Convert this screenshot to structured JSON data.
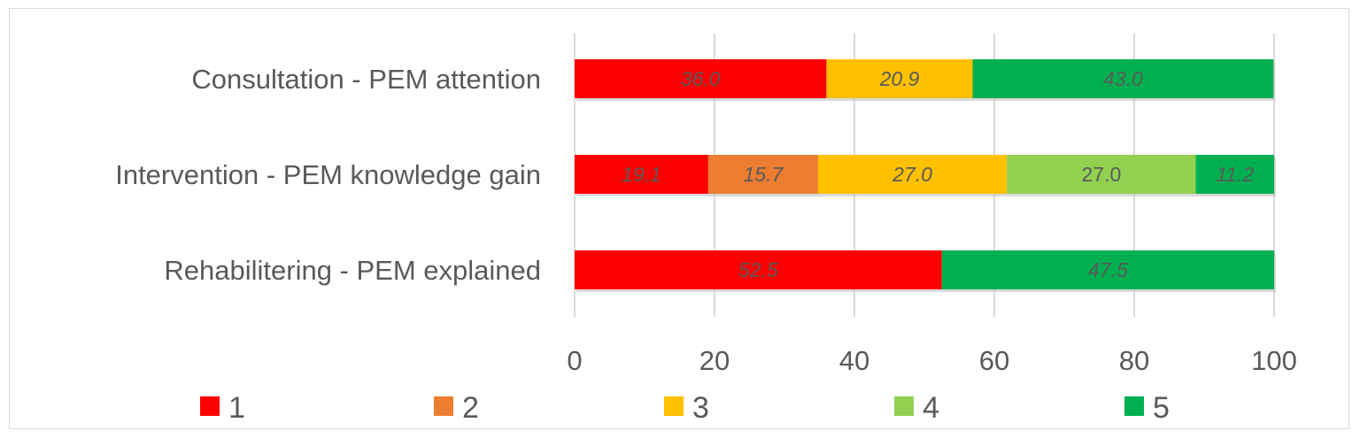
{
  "chart_data": {
    "type": "bar",
    "orientation": "horizontal",
    "stacked": true,
    "categories": [
      "Consultation - PEM attention",
      "Intervention - PEM knowledge gain",
      "Rehabilitering - PEM explained"
    ],
    "series": [
      {
        "name": "1",
        "color": "#ff0000",
        "values": [
          36.0,
          19.1,
          52.5
        ],
        "labels": [
          "36.0",
          "19.1",
          "52.5"
        ]
      },
      {
        "name": "2",
        "color": "#ed7d31",
        "values": [
          0,
          15.7,
          0
        ],
        "labels": [
          "",
          "15.7",
          ""
        ]
      },
      {
        "name": "3",
        "color": "#ffc000",
        "values": [
          20.9,
          27.0,
          0
        ],
        "labels": [
          "20.9",
          "27.0",
          ""
        ]
      },
      {
        "name": "4",
        "color": "#92d050",
        "values": [
          0,
          27.0,
          0
        ],
        "labels": [
          "",
          "27.0",
          ""
        ]
      },
      {
        "name": "5",
        "color": "#00b050",
        "values": [
          43.0,
          11.2,
          47.5
        ],
        "labels": [
          "43.0",
          "11.2",
          "47.5"
        ]
      }
    ],
    "xlim": [
      0,
      100
    ],
    "xticks": [
      "0",
      "20",
      "40",
      "60",
      "80",
      "100"
    ],
    "grid": true,
    "legend_position": "bottom"
  }
}
